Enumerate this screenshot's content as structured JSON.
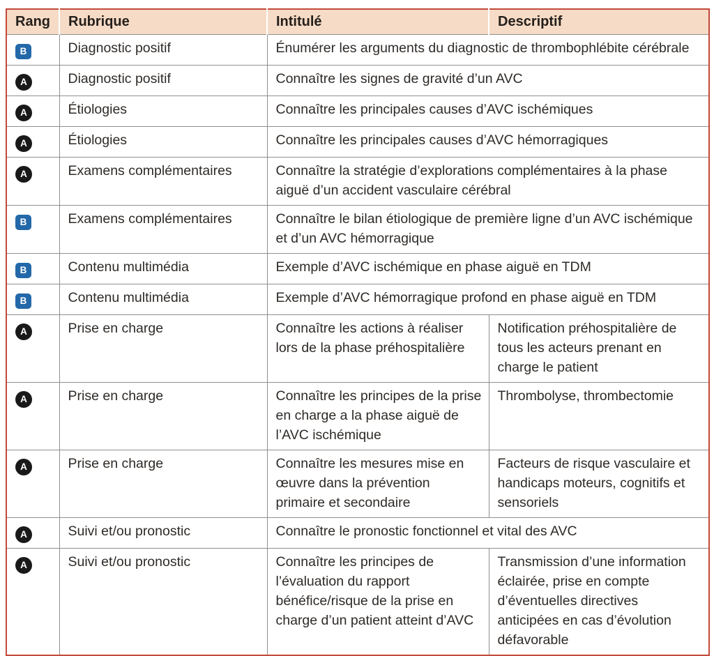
{
  "table": {
    "colors": {
      "border": "#c3493b",
      "header_bg": "#f6dbc6",
      "grid_line": "#8f8f8f",
      "badge_a_bg": "#191919",
      "badge_b_bg": "#2368a9",
      "badge_text": "#ffffff"
    },
    "columns": [
      "Rang",
      "Rubrique",
      "Intitulé",
      "Descriptif"
    ],
    "rows": [
      {
        "rang": "B",
        "rubrique": "Diagnostic positif",
        "intitule": "Énumérer les arguments du diagnostic de thrombophlébite cérébrale",
        "descriptif": null
      },
      {
        "rang": "A",
        "rubrique": "Diagnostic positif",
        "intitule": "Connaître les signes de gravité d’un AVC",
        "descriptif": null
      },
      {
        "rang": "A",
        "rubrique": "Étiologies",
        "intitule": "Connaître les principales causes d’AVC ischémiques",
        "descriptif": null
      },
      {
        "rang": "A",
        "rubrique": "Étiologies",
        "intitule": "Connaître les principales causes d’AVC hémorragiques",
        "descriptif": null
      },
      {
        "rang": "A",
        "rubrique": "Examens complémentaires",
        "intitule": "Connaître la stratégie d’explorations complémentaires à la phase aiguë d’un accident vasculaire cérébral",
        "descriptif": null
      },
      {
        "rang": "B",
        "rubrique": "Examens complémentaires",
        "intitule": "Connaître le bilan étiologique de première ligne d’un AVC ischémique et d’un AVC hémorragique",
        "descriptif": null
      },
      {
        "rang": "B",
        "rubrique": "Contenu multimédia",
        "intitule": "Exemple d’AVC ischémique en phase aiguë en TDM",
        "descriptif": null
      },
      {
        "rang": "B",
        "rubrique": "Contenu multimédia",
        "intitule": "Exemple d’AVC hémorragique profond en phase aiguë en TDM",
        "descriptif": null
      },
      {
        "rang": "A",
        "rubrique": "Prise en charge",
        "intitule": "Connaître les actions à réaliser lors de la phase préhospitalière",
        "descriptif": "Notification préhospitalière de tous les acteurs prenant en charge le patient"
      },
      {
        "rang": "A",
        "rubrique": "Prise en charge",
        "intitule": "Connaître les principes de la prise en charge a la phase aiguë de l’AVC ischémique",
        "descriptif": "Thrombolyse, thrombectomie"
      },
      {
        "rang": "A",
        "rubrique": "Prise en charge",
        "intitule": "Connaître les mesures mise en œuvre dans la prévention primaire et secondaire",
        "descriptif": "Facteurs de risque vasculaire et handicaps moteurs, cognitifs et sensoriels"
      },
      {
        "rang": "A",
        "rubrique": "Suivi et/ou pronostic",
        "intitule": "Connaître le pronostic fonctionnel et vital des AVC",
        "descriptif": null
      },
      {
        "rang": "A",
        "rubrique": "Suivi et/ou pronostic",
        "intitule": "Connaître les principes de l’évaluation du rapport bénéfice/risque de la prise en charge d’un patient atteint d’AVC",
        "descriptif": "Transmission d’une information éclairée, prise en compte d’éventuelles directives anticipées en cas d’évolution défavorable"
      }
    ]
  }
}
